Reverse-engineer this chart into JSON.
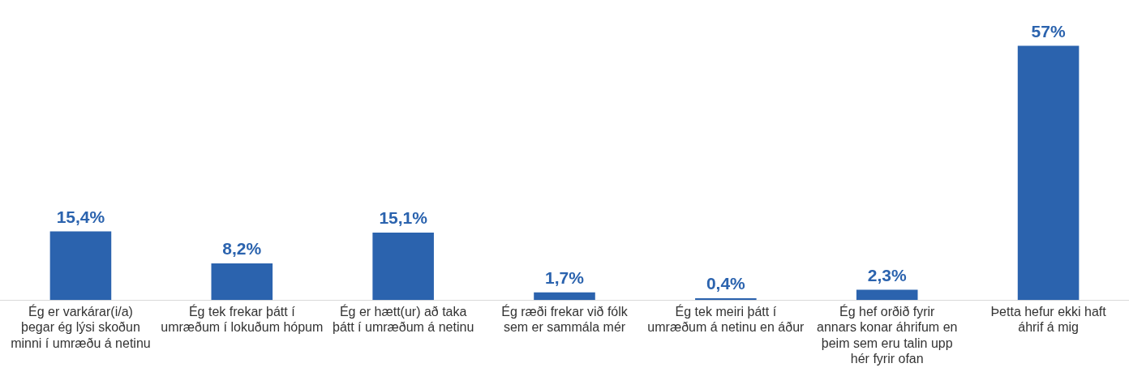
{
  "chart_data": {
    "type": "bar",
    "categories": [
      "Ég er varkárar(i/a) þegar ég lýsi skoðun minni í umræðu á netinu",
      "Ég tek frekar þátt í umræðum í lokuðum hópum",
      "Ég er hætt(ur) að taka þátt í umræðum á netinu",
      "Ég ræði frekar við fólk sem er sammála mér",
      "Ég tek meiri þátt í umræðum á netinu en áður",
      "Ég hef orðið fyrir annars konar áhrifum en þeim sem eru talin upp hér fyrir ofan",
      "Þetta hefur ekki haft áhrif á mig"
    ],
    "values": [
      15.4,
      8.2,
      15.1,
      1.7,
      0.4,
      2.3,
      57
    ],
    "value_labels": [
      "15,4%",
      "8,2%",
      "15,1%",
      "1,7%",
      "0,4%",
      "2,3%",
      "57%"
    ],
    "color": "#2b63ae",
    "grid": false,
    "legend": false
  }
}
